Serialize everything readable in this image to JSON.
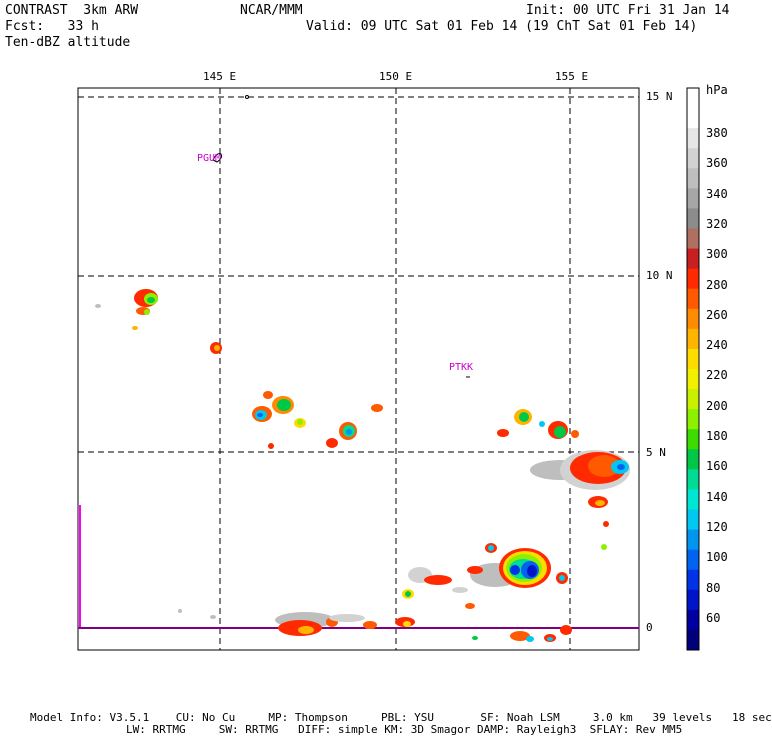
{
  "header": {
    "title_left": "CONTRAST  3km ARW",
    "center": "NCAR/MMM",
    "init": "Init: 00 UTC Fri 31 Jan 14",
    "fcst": "Fcst:   33 h",
    "valid": "Valid: 09 UTC Sat 01 Feb 14 (19 ChT Sat 01 Feb 14)",
    "field": "Ten-dBZ altitude"
  },
  "map": {
    "lon_labels": [
      "145 E",
      "150 E",
      "155 E"
    ],
    "lat_labels": [
      "15 N",
      "10 N",
      "5 N",
      "0"
    ],
    "places": [
      "PGUM",
      "PTKK"
    ]
  },
  "colorbar": {
    "unit": "hPa",
    "labels": [
      "380",
      "360",
      "340",
      "320",
      "300",
      "280",
      "260",
      "240",
      "220",
      "200",
      "180",
      "160",
      "140",
      "120",
      "100",
      "80",
      "60"
    ],
    "colors": [
      "#ffffff",
      "#ffffff",
      "#e6e6e6",
      "#d2d2d2",
      "#bebebe",
      "#a6a6a6",
      "#8c8c8c",
      "#b07060",
      "#c82020",
      "#ff2a00",
      "#ff5a00",
      "#ff8c00",
      "#ffb400",
      "#ffdc00",
      "#f0f000",
      "#c8f000",
      "#8cf000",
      "#3cdc00",
      "#00c846",
      "#00dc96",
      "#00e6d2",
      "#00c8f0",
      "#0096f0",
      "#0064f0",
      "#0032e6",
      "#0014c8",
      "#0000a0",
      "#000078"
    ]
  },
  "footer": {
    "line1": "Model Info: V3.5.1    CU: No Cu     MP: Thompson     PBL: YSU       SF: Noah LSM     3.0 km   39 levels   18 sec",
    "line2": "LW: RRTMG     SW: RRTMG   DIFF: simple KM: 3D Smagor DAMP: Rayleigh3  SFLAY: Rev MM5"
  }
}
